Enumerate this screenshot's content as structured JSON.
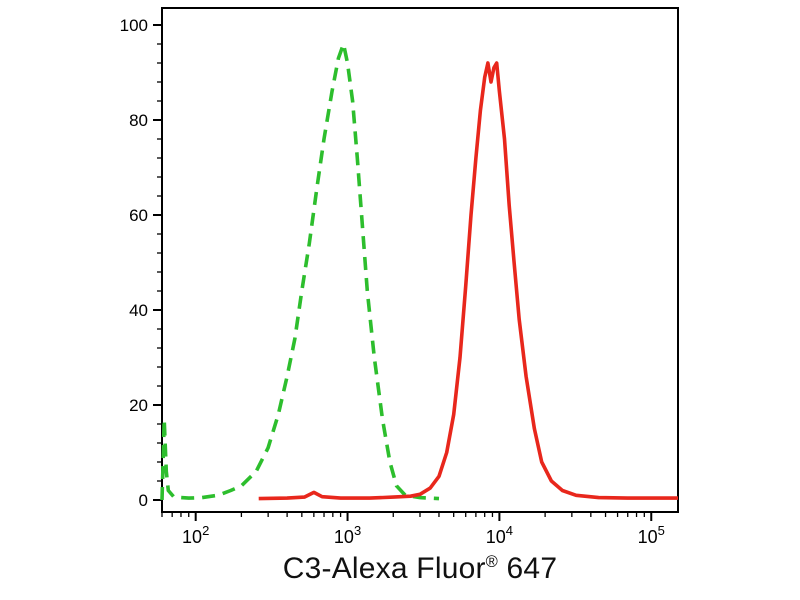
{
  "page": {
    "background": "#ffffff"
  },
  "chart": {
    "title": {
      "main": "C3-Alexa Fluor",
      "sup": "®",
      "tail": " 647"
    }
  },
  "chart_data": {
    "type": "line",
    "title": "",
    "xlabel": "C3-Alexa Fluor® 647",
    "ylabel": "",
    "xscale": "log",
    "xlim": [
      60,
      150000
    ],
    "ylim": [
      0,
      100
    ],
    "grid": false,
    "legend": "none",
    "axis_color": "#000000",
    "x_major_ticks": [
      100,
      1000,
      10000,
      100000
    ],
    "x_tick_exponents": [
      "2",
      "3",
      "4",
      "5"
    ],
    "y_major_ticks": [
      0,
      20,
      40,
      60,
      80,
      100
    ],
    "y_minor_step": 4,
    "series": [
      {
        "name": "green-dashed",
        "color": "#2dbe2d",
        "dash": [
          13,
          8
        ],
        "width": 3.6,
        "points": [
          [
            60,
            0
          ],
          [
            61,
            8
          ],
          [
            62,
            17
          ],
          [
            64,
            6
          ],
          [
            66,
            2
          ],
          [
            72,
            0.6
          ],
          [
            90,
            0.4
          ],
          [
            110,
            0.5
          ],
          [
            140,
            1
          ],
          [
            170,
            2
          ],
          [
            200,
            3
          ],
          [
            250,
            6
          ],
          [
            300,
            11
          ],
          [
            350,
            18
          ],
          [
            400,
            26
          ],
          [
            450,
            34
          ],
          [
            500,
            44
          ],
          [
            560,
            54
          ],
          [
            630,
            66
          ],
          [
            700,
            76
          ],
          [
            790,
            86
          ],
          [
            870,
            93
          ],
          [
            940,
            96
          ],
          [
            1000,
            92
          ],
          [
            1080,
            84
          ],
          [
            1160,
            72
          ],
          [
            1250,
            58
          ],
          [
            1350,
            44
          ],
          [
            1500,
            30
          ],
          [
            1700,
            17
          ],
          [
            1900,
            8
          ],
          [
            2100,
            3
          ],
          [
            2400,
            1
          ],
          [
            3000,
            0.5
          ],
          [
            4000,
            0.3
          ]
        ]
      },
      {
        "name": "red-solid",
        "color": "#e8271c",
        "dash": null,
        "width": 3.6,
        "points": [
          [
            260,
            0.3
          ],
          [
            400,
            0.4
          ],
          [
            520,
            0.6
          ],
          [
            600,
            1.6
          ],
          [
            680,
            0.7
          ],
          [
            900,
            0.4
          ],
          [
            1400,
            0.4
          ],
          [
            2000,
            0.6
          ],
          [
            2600,
            0.8
          ],
          [
            3000,
            1.2
          ],
          [
            3500,
            2.5
          ],
          [
            4000,
            5
          ],
          [
            4500,
            10
          ],
          [
            5000,
            18
          ],
          [
            5500,
            30
          ],
          [
            6000,
            45
          ],
          [
            6500,
            60
          ],
          [
            7000,
            72
          ],
          [
            7500,
            82
          ],
          [
            8000,
            89
          ],
          [
            8400,
            92
          ],
          [
            8800,
            88
          ],
          [
            9200,
            91
          ],
          [
            9600,
            92
          ],
          [
            10000,
            86
          ],
          [
            10800,
            76
          ],
          [
            11600,
            62
          ],
          [
            12500,
            50
          ],
          [
            13500,
            38
          ],
          [
            15000,
            26
          ],
          [
            17000,
            15
          ],
          [
            19000,
            8
          ],
          [
            22000,
            4
          ],
          [
            26000,
            2
          ],
          [
            32000,
            1
          ],
          [
            45000,
            0.5
          ],
          [
            70000,
            0.4
          ],
          [
            110000,
            0.4
          ],
          [
            150000,
            0.4
          ]
        ]
      }
    ]
  }
}
